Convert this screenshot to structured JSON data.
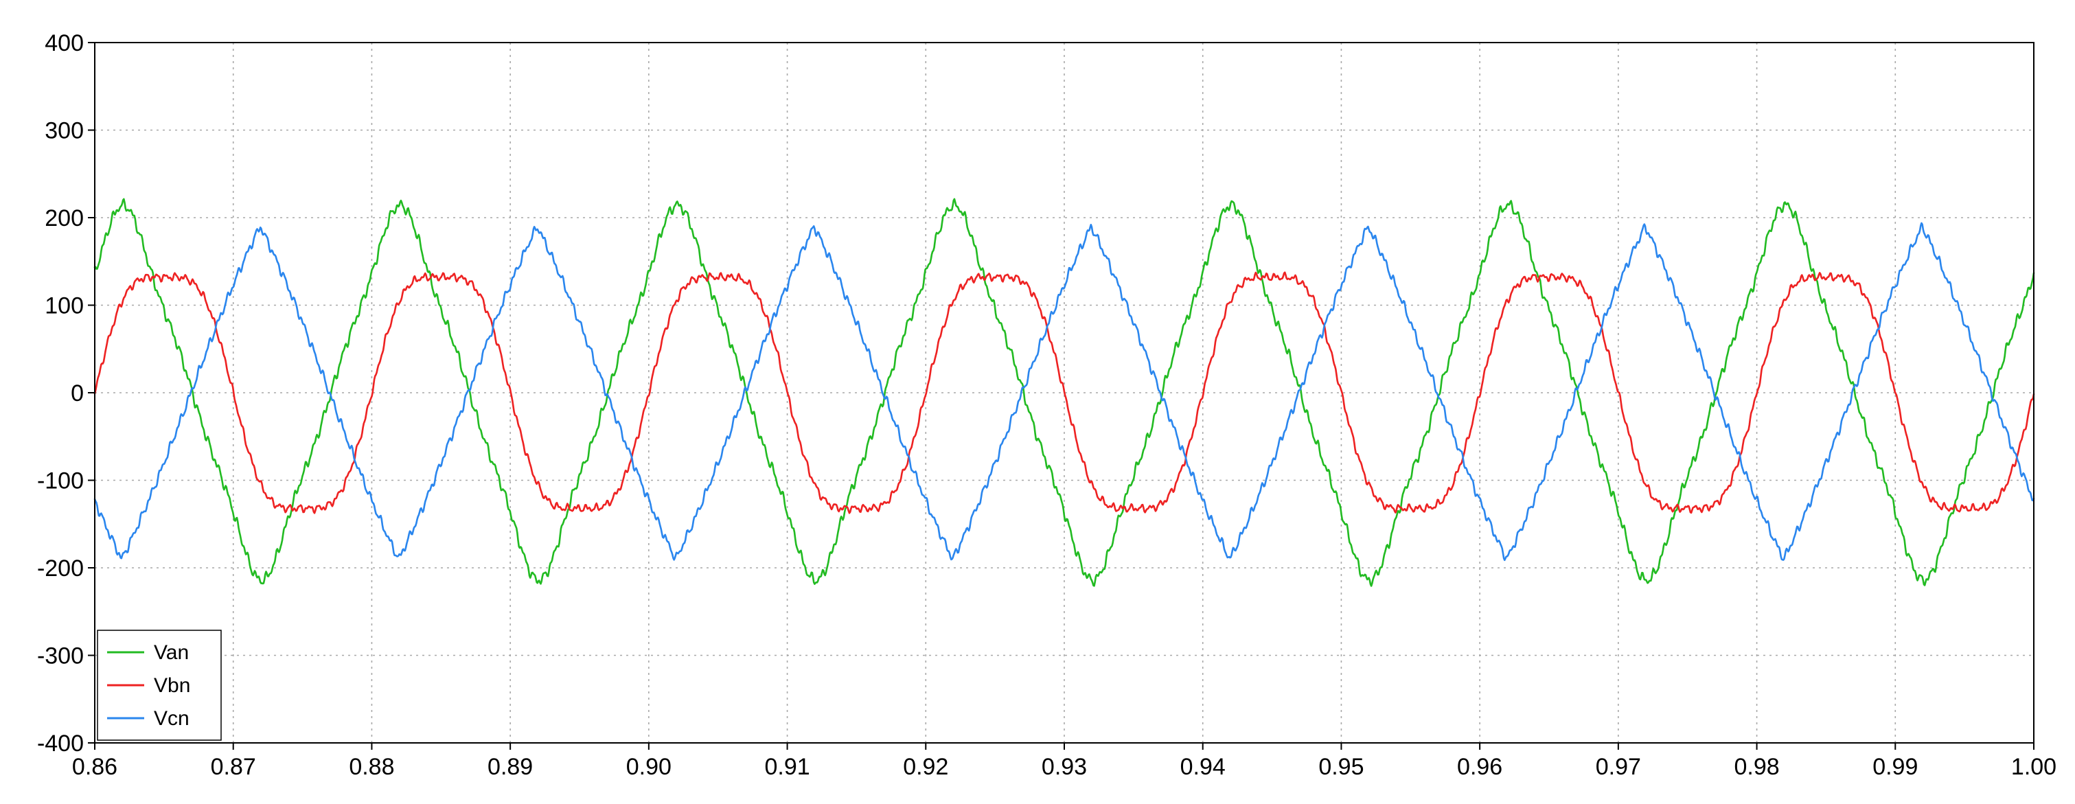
{
  "chart_data": {
    "type": "line",
    "title": "",
    "xlabel": "",
    "ylabel": "",
    "xlim": [
      0.86,
      1.0
    ],
    "ylim": [
      -400,
      400
    ],
    "x_ticks": [
      "0.86",
      "0.87",
      "0.88",
      "0.89",
      "0.90",
      "0.91",
      "0.92",
      "0.93",
      "0.94",
      "0.95",
      "0.96",
      "0.97",
      "0.98",
      "0.99",
      "1.00"
    ],
    "y_ticks": [
      "400",
      "300",
      "200",
      "100",
      "0",
      "-100",
      "-200",
      "-300",
      "-400"
    ],
    "grid": true,
    "legend_position": "bottom-left",
    "frequency_hz": 50,
    "series": [
      {
        "name": "Van",
        "color": "#22bb22",
        "amplitude": 188,
        "phase_deg": 53,
        "shape": "distorted-sine"
      },
      {
        "name": "Vbn",
        "color": "#ee2222",
        "amplitude": 150,
        "phase_deg": 0,
        "shape": "flat-top-sine"
      },
      {
        "name": "Vcn",
        "color": "#2a86ee",
        "amplitude": 190,
        "phase_deg": 235,
        "shape": "triangular"
      }
    ]
  }
}
